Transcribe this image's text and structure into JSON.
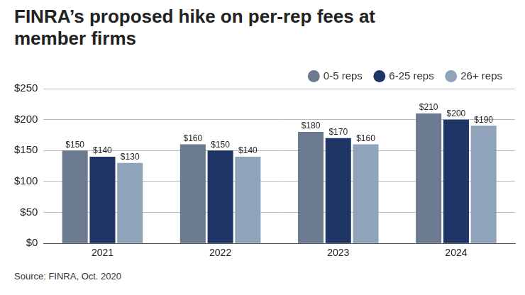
{
  "chart_data": {
    "type": "bar",
    "title": "FINRA’s proposed hike on per-rep fees at member firms",
    "source": "Source: FINRA, Oct. 2020",
    "categories": [
      "2021",
      "2022",
      "2023",
      "2024"
    ],
    "series": [
      {
        "name": "0-5 reps",
        "color": "#6b7a8f",
        "values": [
          150,
          160,
          180,
          210
        ],
        "value_labels": [
          "$150",
          "$160",
          "$180",
          "$210"
        ]
      },
      {
        "name": "6-25 reps",
        "color": "#1f3566",
        "values": [
          140,
          150,
          170,
          200
        ],
        "value_labels": [
          "$140",
          "$150",
          "$170",
          "$200"
        ]
      },
      {
        "name": "26+ reps",
        "color": "#8fa3bb",
        "values": [
          130,
          140,
          160,
          190
        ],
        "value_labels": [
          "$130",
          "$140",
          "$160",
          "$190"
        ]
      }
    ],
    "ylim": [
      0,
      250
    ],
    "yticks": [
      {
        "value": 0,
        "label": "$0"
      },
      {
        "value": 50,
        "label": "$50"
      },
      {
        "value": 100,
        "label": "$100"
      },
      {
        "value": 150,
        "label": "$150"
      },
      {
        "value": 200,
        "label": "$200"
      },
      {
        "value": 250,
        "label": "$250"
      }
    ],
    "grid": true,
    "legend": "top",
    "data_labels": true
  }
}
